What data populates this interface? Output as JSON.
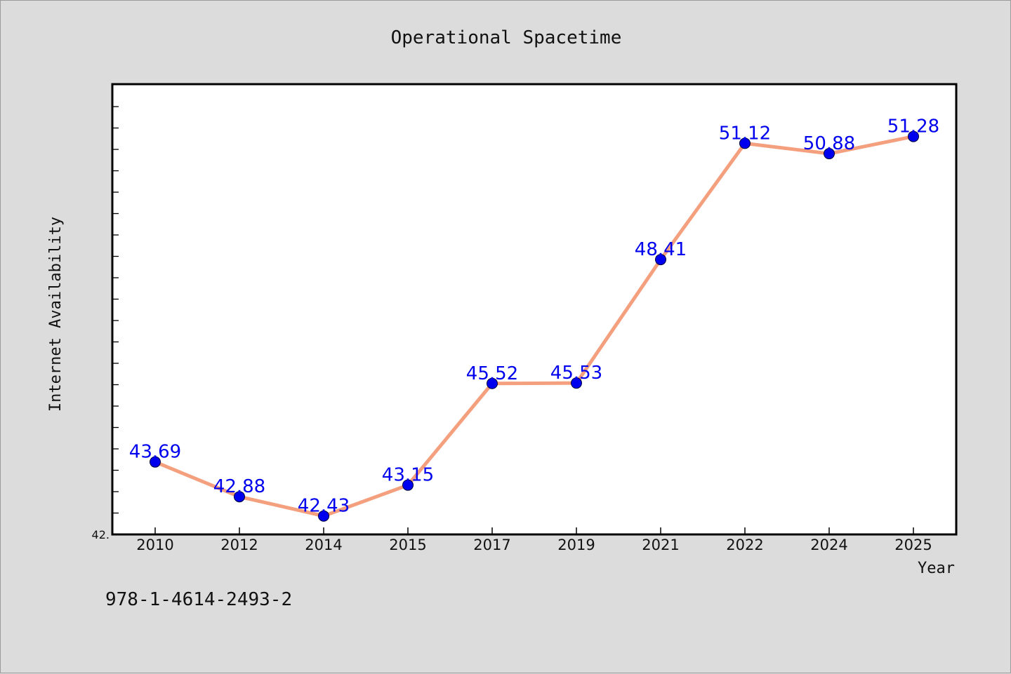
{
  "chart_data": {
    "type": "line",
    "title": "Operational Spacetime",
    "xlabel": "Year",
    "ylabel": "Internet Availability",
    "categories": [
      "2010",
      "2012",
      "2014",
      "2015",
      "2017",
      "2019",
      "2021",
      "2022",
      "2024",
      "2025"
    ],
    "series": [
      {
        "values": [
          43.69,
          42.88,
          42.43,
          43.15,
          45.52,
          45.53,
          48.41,
          51.12,
          50.88,
          51.28
        ],
        "labels": [
          "43.69",
          "42.88",
          "42.43",
          "43.15",
          "45.52",
          "45.53",
          "48.41",
          "51.12",
          "50.88",
          "51.28"
        ],
        "line_color": "#f4a07e",
        "marker_color": "#0000ee",
        "label_color": "#0000ee"
      }
    ],
    "ylim": [
      42.0,
      52.5
    ],
    "y_tick_label": "42.",
    "grid": false,
    "legend": "none"
  },
  "footer": {
    "isbn": "978-1-4614-2493-2"
  }
}
